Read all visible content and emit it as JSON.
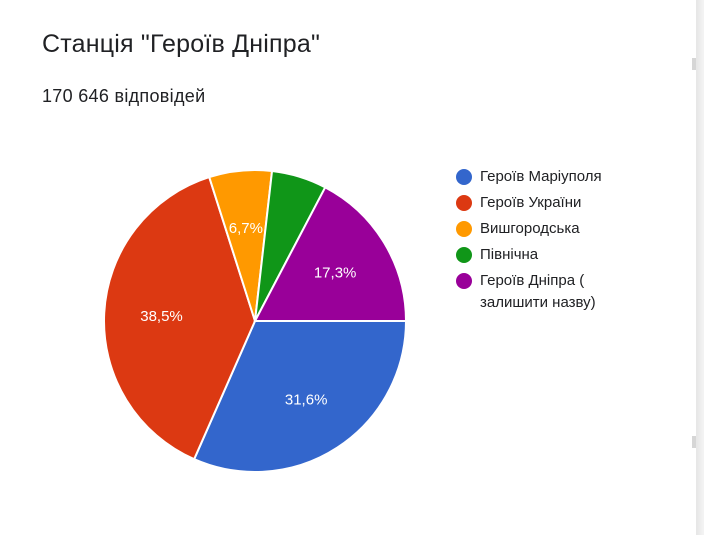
{
  "page": {
    "title": "Станція \"Героїв Дніпра\"",
    "responses": "170 646 відповідей"
  },
  "colors": {
    "blue": "#3366cc",
    "red": "#dc3912",
    "orange": "#ff9900",
    "green": "#109618",
    "purple": "#990099"
  },
  "chart_data": {
    "type": "pie",
    "title": "Станція \"Героїв Дніпра\"",
    "subtitle": "170 646 відповідей",
    "legend_position": "right",
    "slices": [
      {
        "label": "Героїв Маріуполя",
        "value": 31.6,
        "display": "31,6%",
        "color": "#3366cc"
      },
      {
        "label": "Героїв України",
        "value": 38.5,
        "display": "38,5%",
        "color": "#dc3912"
      },
      {
        "label": "Вишгородська",
        "value": 6.7,
        "display": "6,7%",
        "color": "#ff9900"
      },
      {
        "label": "Північна",
        "value": 5.9,
        "display": "",
        "color": "#109618"
      },
      {
        "label": "Героїв Дніпра ( залишити назву)",
        "value": 17.3,
        "display": "17,3%",
        "color": "#990099"
      }
    ]
  }
}
